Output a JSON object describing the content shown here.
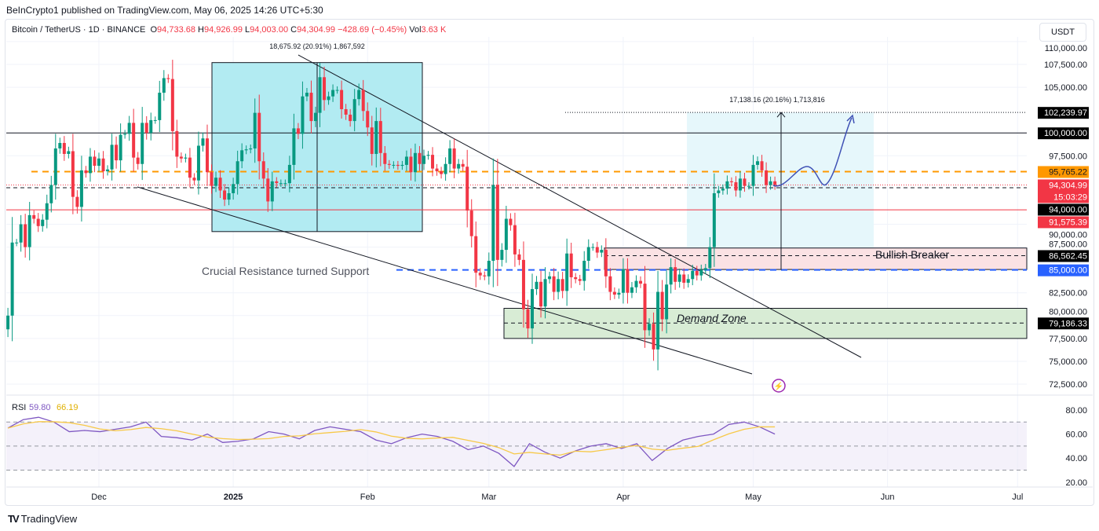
{
  "publisher_line": "BeInCrypto1 published on TradingView.com, May 06, 2025 14:26 UTC+5:30",
  "legend": {
    "symbol": "Bitcoin / TetherUS · 1D · BINANCE",
    "open_label": "O",
    "open": "94,733.68",
    "high_label": "H",
    "high": "94,926.99",
    "low_label": "L",
    "low": "94,003.00",
    "close_label": "C",
    "close": "94,304.99",
    "change": "−428.69 (−0.45%)",
    "vol_label": "Vol",
    "vol": "3.63 K"
  },
  "currency_button": "USDT",
  "footer_brand": "TradingView",
  "colors": {
    "up": "#089981",
    "down": "#f23645",
    "orange": "#ff9800",
    "blue": "#2962ff",
    "rsi": "#7e57c2",
    "rsi_ma": "#f7c948"
  },
  "chart_data": {
    "type": "candlestick",
    "title": "Bitcoin / TetherUS · 1D · BINANCE",
    "start_date": "2024-11-10",
    "closes": [
      80.0,
      88.0,
      88.0,
      90.0,
      87.5,
      91.0,
      90.6,
      89.8,
      90.5,
      92.3,
      94.3,
      98.3,
      98.9,
      97.7,
      98.0,
      93.0,
      91.9,
      95.9,
      95.6,
      97.4,
      96.4,
      97.2,
      95.8,
      96.0,
      98.7,
      97.0,
      99.8,
      99.9,
      101.1,
      97.3,
      96.6,
      101.1,
      100.0,
      101.4,
      101.4,
      104.4,
      106.0,
      105.9,
      100.2,
      97.4,
      97.2,
      97.3,
      95.1,
      94.8,
      98.6,
      99.4,
      95.7,
      94.2,
      95.1,
      93.7,
      92.7,
      93.4,
      94.4,
      96.9,
      98.1,
      98.2,
      98.3,
      102.2,
      96.9,
      95.0,
      92.5,
      94.7,
      94.5,
      94.5,
      94.5,
      96.5,
      100.5,
      99.9,
      104.0,
      104.4,
      101.3,
      102.2,
      106.1,
      103.6,
      104.0,
      104.7,
      104.7,
      102.6,
      102.0,
      101.3,
      103.7,
      104.7,
      102.4,
      100.6,
      97.7,
      101.3,
      97.8,
      96.6,
      96.5,
      96.5,
      96.4,
      96.5,
      97.4,
      95.7,
      97.8,
      96.6,
      97.5,
      97.6,
      96.1,
      95.8,
      95.5,
      96.6,
      98.3,
      96.1,
      96.6,
      96.3,
      91.5,
      88.7,
      84.7,
      84.4,
      84.3,
      86.0,
      94.3,
      86.1,
      87.2,
      90.6,
      89.9,
      86.7,
      86.1,
      80.7,
      78.6,
      82.9,
      83.7,
      81.0,
      84.0,
      84.3,
      82.6,
      84.0,
      82.7,
      86.8,
      84.2,
      84.0,
      83.8,
      86.0,
      87.5,
      87.5,
      86.9,
      87.2,
      84.3,
      82.6,
      82.3,
      82.5,
      85.1,
      82.5,
      83.1,
      83.8,
      83.5,
      78.4,
      79.1,
      76.3,
      82.6,
      79.6,
      83.4,
      85.3,
      83.7,
      84.5,
      83.6,
      84.0,
      84.9,
      84.4,
      85.0,
      85.2,
      87.5,
      93.4,
      93.7,
      93.9,
      94.7,
      94.6,
      93.7,
      95.0,
      94.2,
      94.2,
      96.5,
      96.9,
      95.9,
      94.3,
      94.7,
      94.3
    ],
    "close_unit": "thousand USDT",
    "y_axis_ticks": [
      "110,000.00",
      "107,500.00",
      "105,000.00",
      "97,500.00",
      "90,000.00",
      "87,500.00",
      "82,500.00",
      "80,000.00",
      "77,500.00",
      "75,000.00",
      "72,500.00"
    ],
    "y_tick_values": [
      110000,
      107500,
      105000,
      97500,
      90000,
      87500,
      82500,
      80000,
      77500,
      75000,
      72500
    ],
    "x_axis_ticks": [
      "Dec",
      "2025",
      "Feb",
      "Mar",
      "Apr",
      "May",
      "Jun",
      "Jul"
    ],
    "x_tick_day_index": [
      21,
      52,
      83,
      111,
      142,
      172,
      203,
      233
    ],
    "ylim": [
      72500,
      110000
    ],
    "price_labels": [
      {
        "price": 102239.97,
        "text": "102,239.97",
        "style": "black"
      },
      {
        "price": 100000,
        "text": "100,000.00",
        "style": "black"
      },
      {
        "price": 95765.22,
        "text": "95,765.22",
        "style": "orange"
      },
      {
        "price": 94304.99,
        "text": "94,304.99",
        "sub": "15:03:29",
        "style": "red"
      },
      {
        "price": 94000,
        "text": "94,000.00",
        "style": "black"
      },
      {
        "price": 91575.39,
        "text": "91,575.39",
        "style": "red"
      },
      {
        "price": 86562.45,
        "text": "86,562.45",
        "style": "black"
      },
      {
        "price": 85000,
        "text": "85,000.00",
        "style": "blue"
      },
      {
        "price": 79186.33,
        "text": "79,186.33",
        "style": "black"
      }
    ],
    "annotations": {
      "measure_1": "18,675.92 (20.91%) 1,867,592",
      "measure_2": "17,138.16 (20.16%) 1,713,816",
      "support_text": "Crucial Resistance turned Support",
      "breaker_text": "Bullish Breaker",
      "demand_text": "Demand Zone"
    },
    "rsi": {
      "label": "RSI",
      "value": "59.80",
      "ma_value": "66.19",
      "ticks": [
        "80.00",
        "60.00",
        "40.00",
        "20.00"
      ],
      "tick_values": [
        80,
        60,
        40,
        20
      ],
      "bands": [
        70,
        50,
        30
      ],
      "values": [
        65,
        72,
        74,
        70,
        62,
        63,
        62,
        64,
        66,
        70,
        58,
        57,
        55,
        60,
        53,
        54,
        56,
        62,
        60,
        56,
        63,
        66,
        64,
        62,
        55,
        52,
        57,
        60,
        58,
        54,
        47,
        50,
        44,
        33,
        52,
        45,
        40,
        46,
        50,
        52,
        48,
        52,
        38,
        48,
        55,
        58,
        60,
        68,
        70,
        66,
        60
      ]
    }
  }
}
